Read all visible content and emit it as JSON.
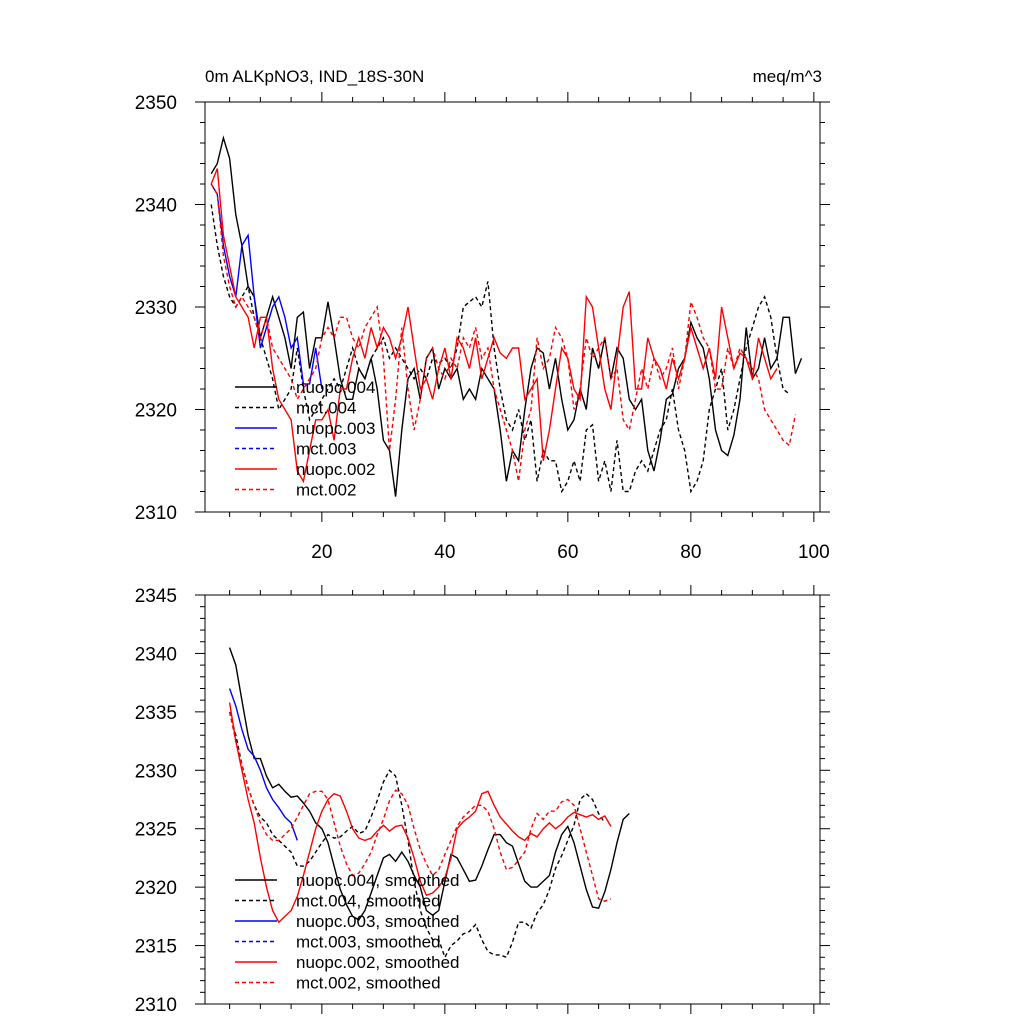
{
  "chart_data": [
    {
      "type": "line",
      "title_left": "0m ALKpNO3, IND_18S-30N",
      "title_right": "meq/m^3",
      "xlim": [
        1,
        101
      ],
      "ylim": [
        2310,
        2350
      ],
      "yticks": [
        2310,
        2320,
        2330,
        2340,
        2350
      ],
      "xticks": [
        20,
        40,
        60,
        80,
        100
      ],
      "show_x_tick_labels": true,
      "legend_position": "lower-left",
      "series": [
        {
          "name": "nuopc.004",
          "color": "#000000",
          "dash": "solid",
          "x_start": 2,
          "values": [
            2343,
            2344,
            2346.5,
            2344.5,
            2339,
            2336,
            2332,
            2331,
            2327,
            2329,
            2331,
            2329,
            2327,
            2324,
            2329,
            2329.5,
            2324,
            2327,
            2327,
            2330.5,
            2327,
            2323,
            2321,
            2321,
            2324,
            2323,
            2325,
            2322,
            2317,
            2316,
            2311.5,
            2318,
            2323,
            2324,
            2321,
            2325,
            2326,
            2322,
            2324,
            2323,
            2324,
            2321,
            2322,
            2321,
            2324,
            2323,
            2322,
            2318,
            2313,
            2316,
            2315,
            2320,
            2324,
            2326,
            2325.5,
            2322,
            2325,
            2321,
            2318,
            2319,
            2322,
            2320,
            2326,
            2324,
            2327,
            2323,
            2326,
            2325,
            2321,
            2320,
            2321,
            2316,
            2314,
            2317,
            2321,
            2321.5,
            2324,
            2325,
            2328.5,
            2327,
            2326,
            2323,
            2318,
            2316,
            2315.5,
            2317.5,
            2321,
            2328,
            2323,
            2324,
            2327,
            2324,
            2325,
            2329,
            2329,
            2323.5,
            2325
          ]
        },
        {
          "name": "mct.004",
          "color": "#000000",
          "dash": "dashed",
          "x_start": 2,
          "values": [
            2340,
            2336,
            2333,
            2331,
            2330,
            2331,
            2332,
            2329,
            2327,
            2325,
            2323,
            2320,
            2321,
            2322,
            2326,
            2322,
            2319,
            2320,
            2321,
            2322,
            2323,
            2322,
            2324,
            2326,
            2324,
            2323,
            2325,
            2326,
            2327,
            2325,
            2326,
            2325,
            2324,
            2323,
            2324,
            2323,
            2325,
            2324.5,
            2325,
            2324,
            2326,
            2330,
            2330.5,
            2331,
            2330,
            2332.5,
            2326,
            2322,
            2319,
            2318,
            2320,
            2317,
            2319,
            2313,
            2316,
            2315,
            2315,
            2312,
            2313,
            2315,
            2313,
            2318,
            2318.5,
            2313,
            2315,
            2312,
            2317,
            2312,
            2312,
            2314,
            2315,
            2314,
            2316,
            2318,
            2319,
            2322,
            2318,
            2316,
            2312,
            2313,
            2315,
            2320,
            2322,
            2324,
            2318,
            2320,
            2323,
            2326,
            2328,
            2330,
            2331,
            2329,
            2325,
            2322,
            2321.5
          ]
        },
        {
          "name": "nuopc.003",
          "color": "#0000ff",
          "dash": "solid",
          "x_start": 2,
          "values": [
            2342,
            2341,
            2336,
            2333,
            2331,
            2336,
            2337,
            2331,
            2326,
            2328,
            2330,
            2331,
            2329,
            2326,
            2327,
            2322.5,
            2322.5,
            2326,
            2322
          ]
        },
        {
          "name": "mct.003",
          "color": "#0000ff",
          "dash": "dashed",
          "x_start": 2,
          "values": []
        },
        {
          "name": "nuopc.002",
          "color": "#ff0000",
          "dash": "solid",
          "x_start": 2,
          "values": [
            2342,
            2343.5,
            2337,
            2334,
            2331,
            2330,
            2329,
            2326,
            2329,
            2329,
            2324,
            2321,
            2320,
            2319,
            2314,
            2313,
            2316,
            2319,
            2319,
            2320,
            2317,
            2322,
            2322,
            2325,
            2327,
            2325,
            2328,
            2326,
            2328,
            2327,
            2325,
            2327,
            2330,
            2326,
            2322,
            2323,
            2321,
            2324,
            2326,
            2323,
            2327,
            2326,
            2324,
            2327,
            2323,
            2325,
            2327,
            2325.5,
            2325,
            2326,
            2326,
            2321,
            2322,
            2323,
            2315,
            2318,
            2322,
            2326,
            2325,
            2322,
            2321,
            2331,
            2330,
            2326,
            2322,
            2320,
            2325,
            2330,
            2331.5,
            2322,
            2322,
            2327,
            2325,
            2324,
            2322,
            2325,
            2323,
            2325,
            2328,
            2326,
            2324,
            2326,
            2323,
            2330,
            2327,
            2324,
            2325.5,
            2325,
            2323,
            2327,
            2325,
            2323,
            2324
          ]
        },
        {
          "name": "mct.002",
          "color": "#ff0000",
          "dash": "dashed",
          "x_start": 2,
          "values": [
            2342,
            2341,
            2335,
            2332,
            2330,
            2331,
            2330,
            2329,
            2327,
            2329,
            2326,
            2325,
            2324,
            2323,
            2321,
            2322,
            2323,
            2324,
            2327,
            2328,
            2327,
            2329,
            2329,
            2327,
            2326,
            2328,
            2329,
            2330,
            2325,
            2316,
            2321,
            2328,
            2322,
            2318,
            2321,
            2325,
            2326,
            2324,
            2323,
            2325,
            2324,
            2327,
            2326,
            2328,
            2325,
            2326,
            2322,
            2320,
            2318,
            2316,
            2313,
            2318,
            2320,
            2327,
            2324,
            2325,
            2328,
            2327,
            2325,
            2320,
            2322,
            2327,
            2325,
            2326,
            2327,
            2323,
            2324,
            2319,
            2318,
            2321,
            2324,
            2322,
            2325,
            2323,
            2324,
            2326,
            2322,
            2325,
            2330.5,
            2329,
            2327,
            2326,
            2322,
            2322,
            2326,
            2324,
            2326,
            2325,
            2324,
            2323,
            2320,
            2319,
            2318,
            2317,
            2316.5,
            2319.5
          ]
        }
      ]
    },
    {
      "type": "line",
      "title_left": "",
      "title_right": "",
      "xlim": [
        1,
        101
      ],
      "ylim": [
        2310,
        2345
      ],
      "yticks": [
        2310,
        2315,
        2320,
        2325,
        2330,
        2335,
        2340,
        2345
      ],
      "xticks": [
        20,
        40,
        60,
        80,
        100
      ],
      "show_x_tick_labels": false,
      "legend_position": "lower-left",
      "series": [
        {
          "name": "nuopc.004, smoothed",
          "color": "#000000",
          "dash": "solid",
          "x_start": 5,
          "values": [
            2340.5,
            2339,
            2336,
            2333,
            2331,
            2331,
            2329.5,
            2328.5,
            2328.8,
            2328.2,
            2327.7,
            2327.8,
            2327.2,
            2326.5,
            2325.5,
            2325,
            2323.8,
            2321.8,
            2319.8,
            2318.5,
            2317.5,
            2317.2,
            2318,
            2319.5,
            2321,
            2322.5,
            2322.8,
            2322.2,
            2323,
            2322.2,
            2321,
            2320,
            2318,
            2317.6,
            2318,
            2320.5,
            2322.8,
            2322.5,
            2321.5,
            2320.5,
            2320.6,
            2321.8,
            2323.2,
            2324.5,
            2324.5,
            2323.8,
            2323.5,
            2322,
            2320.5,
            2320,
            2320,
            2320.5,
            2321,
            2323,
            2324.5,
            2325.2,
            2323.8,
            2321.8,
            2319.8,
            2318.3,
            2318.2,
            2319.6,
            2321.5,
            2323.8,
            2325.8,
            2326.3
          ]
        },
        {
          "name": "mct.004, smoothed",
          "color": "#000000",
          "dash": "dashed",
          "x_start": 5,
          "values": [
            2335,
            2333,
            2330.5,
            2328.5,
            2327,
            2326,
            2325.5,
            2324.5,
            2324,
            2323.5,
            2323,
            2321.8,
            2321.8,
            2322.2,
            2323,
            2323.8,
            2324.5,
            2324.2,
            2324.3,
            2324.8,
            2325.2,
            2324.6,
            2324.8,
            2326,
            2327.4,
            2329,
            2330,
            2329.5,
            2327,
            2324,
            2320.5,
            2318,
            2316.5,
            2315.5,
            2315.5,
            2314,
            2315,
            2315.4,
            2316,
            2316.2,
            2316.8,
            2315.5,
            2314.5,
            2314.2,
            2314.2,
            2314,
            2315.3,
            2317,
            2317,
            2316.5,
            2317.8,
            2318.5,
            2319.8,
            2321.6,
            2322.7,
            2324,
            2325.3,
            2327.5,
            2328,
            2327.5,
            2326.3,
            2325.5
          ]
        },
        {
          "name": "nuopc.003, smoothed",
          "color": "#0000ff",
          "dash": "solid",
          "x_start": 5,
          "values": [
            2337,
            2335.5,
            2333.5,
            2331.8,
            2331.2,
            2330,
            2328.5,
            2327.5,
            2326.8,
            2326,
            2325.5,
            2324
          ]
        },
        {
          "name": "mct.003, smoothed",
          "color": "#0000ff",
          "dash": "dashed",
          "x_start": 5,
          "values": []
        },
        {
          "name": "nuopc.002, smoothed",
          "color": "#ff0000",
          "dash": "solid",
          "x_start": 5,
          "values": [
            2335.8,
            2332.5,
            2330,
            2327.5,
            2325.5,
            2322.5,
            2320,
            2318,
            2317,
            2317.5,
            2318,
            2319.2,
            2321,
            2323,
            2325,
            2326.5,
            2327.5,
            2328,
            2327.8,
            2326.5,
            2325,
            2324.2,
            2324,
            2324.2,
            2324.8,
            2325.3,
            2324.8,
            2325.2,
            2325.3,
            2324.2,
            2322.5,
            2320.5,
            2319.3,
            2319.5,
            2320,
            2320.8,
            2322.5,
            2325,
            2325.6,
            2326,
            2326.5,
            2328,
            2328.2,
            2327,
            2326,
            2325.4,
            2324.8,
            2324.3,
            2324,
            2324.6,
            2324.3,
            2325,
            2325.5,
            2325,
            2325.4,
            2326,
            2326.4,
            2326.2,
            2326,
            2326.2,
            2325.8,
            2326.1,
            2325.2
          ]
        },
        {
          "name": "mct.002, smoothed",
          "color": "#ff0000",
          "dash": "dashed",
          "x_start": 5,
          "values": [
            2335,
            2332.5,
            2330.5,
            2328.5,
            2327,
            2325.5,
            2324.5,
            2324,
            2324,
            2324.5,
            2325,
            2326,
            2327,
            2328,
            2328.2,
            2328.2,
            2327.5,
            2325.5,
            2323.5,
            2322,
            2321,
            2321.2,
            2322,
            2323,
            2324.5,
            2325.8,
            2327.4,
            2328.3,
            2328,
            2327,
            2325,
            2323.2,
            2322,
            2321,
            2321.5,
            2322.8,
            2324,
            2325.2,
            2326,
            2326.5,
            2327,
            2327,
            2326.5,
            2325,
            2323,
            2321.5,
            2321.7,
            2322.3,
            2323,
            2325,
            2326.3,
            2325.8,
            2326.5,
            2326.5,
            2327.3,
            2327.5,
            2327,
            2325,
            2323,
            2321,
            2319,
            2318.8,
            2319
          ]
        }
      ]
    }
  ]
}
